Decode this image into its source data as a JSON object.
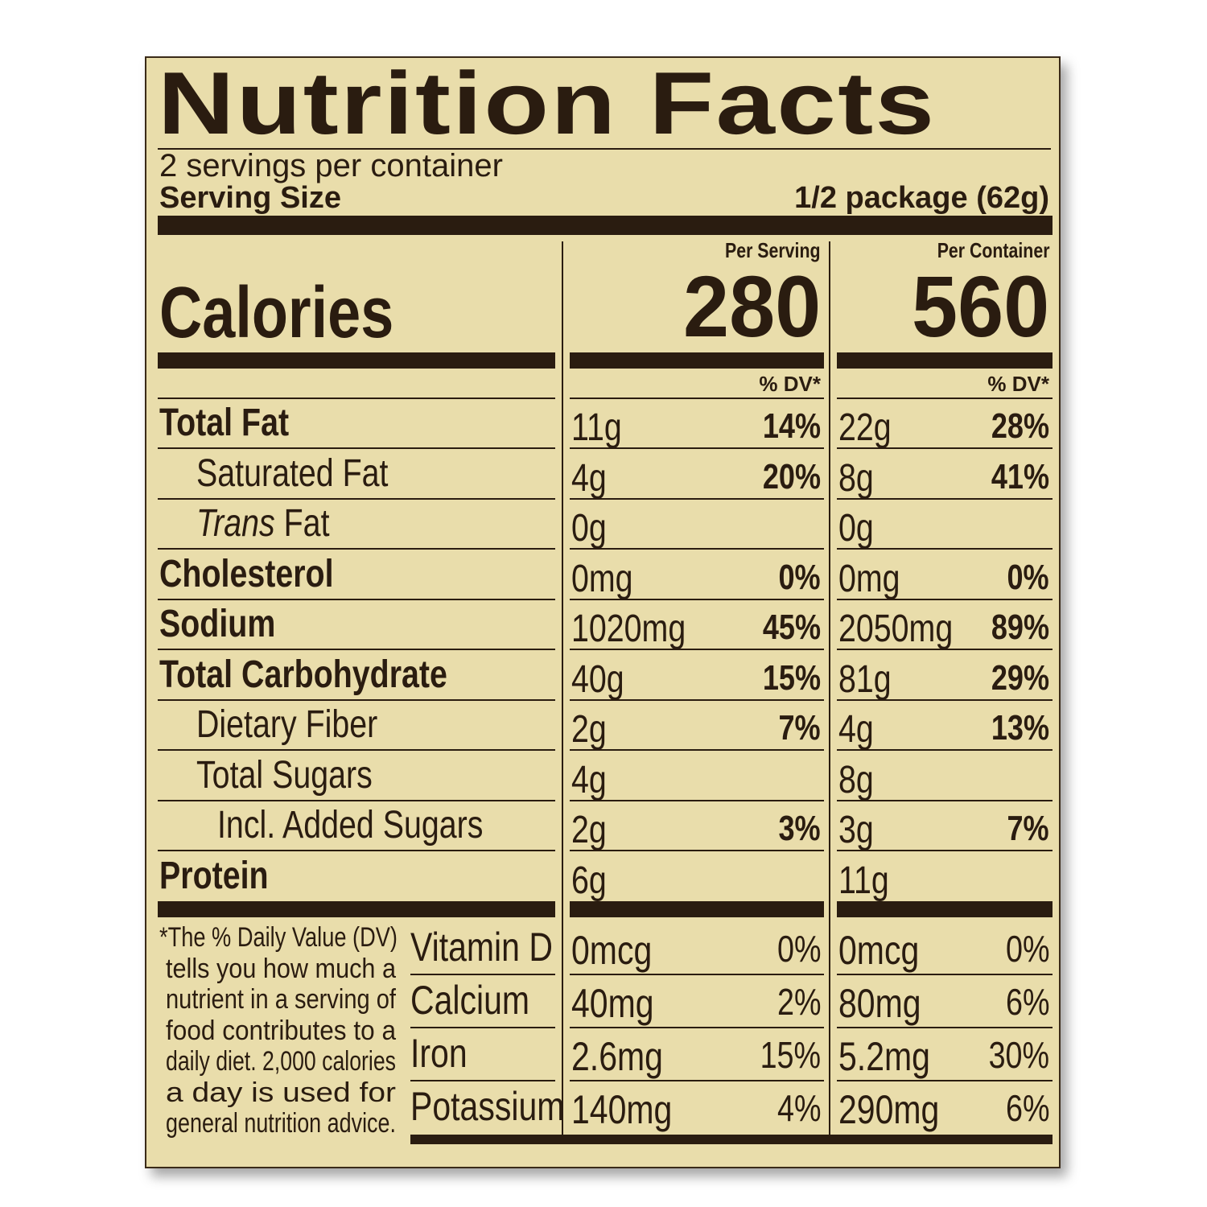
{
  "label": {
    "title": "Nutrition Facts",
    "servings_per_container": "2 servings per container",
    "serving_size_label": "Serving Size",
    "serving_size_value": "1/2 package (62g)",
    "per_serving_header": "Per Serving",
    "per_container_header": "Per Container",
    "calories_label": "Calories",
    "calories_per_serving": "280",
    "calories_per_container": "560",
    "dv_header": "% DV*",
    "nutrients": [
      {
        "name": "Total Fat",
        "bold": true,
        "indent": 0,
        "serving_amount": "11g",
        "serving_dv": "14%",
        "container_amount": "22g",
        "container_dv": "28%"
      },
      {
        "name": "Saturated Fat",
        "bold": false,
        "indent": 1,
        "serving_amount": "4g",
        "serving_dv": "20%",
        "container_amount": "8g",
        "container_dv": "41%"
      },
      {
        "name": "Trans Fat",
        "name_italic_part": "Trans",
        "name_rest": " Fat",
        "bold": false,
        "indent": 1,
        "serving_amount": "0g",
        "serving_dv": "",
        "container_amount": "0g",
        "container_dv": ""
      },
      {
        "name": "Cholesterol",
        "bold": true,
        "indent": 0,
        "serving_amount": "0mg",
        "serving_dv": "0%",
        "container_amount": "0mg",
        "container_dv": "0%"
      },
      {
        "name": "Sodium",
        "bold": true,
        "indent": 0,
        "serving_amount": "1020mg",
        "serving_dv": "45%",
        "container_amount": "2050mg",
        "container_dv": "89%"
      },
      {
        "name": "Total Carbohydrate",
        "bold": true,
        "indent": 0,
        "serving_amount": "40g",
        "serving_dv": "15%",
        "container_amount": "81g",
        "container_dv": "29%"
      },
      {
        "name": "Dietary Fiber",
        "bold": false,
        "indent": 1,
        "serving_amount": "2g",
        "serving_dv": "7%",
        "container_amount": "4g",
        "container_dv": "13%"
      },
      {
        "name": "Total Sugars",
        "bold": false,
        "indent": 1,
        "serving_amount": "4g",
        "serving_dv": "",
        "container_amount": "8g",
        "container_dv": ""
      },
      {
        "name": "Incl. Added Sugars",
        "bold": false,
        "indent": 2,
        "serving_amount": "2g",
        "serving_dv": "3%",
        "container_amount": "3g",
        "container_dv": "7%"
      },
      {
        "name": "Protein",
        "bold": true,
        "indent": 0,
        "serving_amount": "6g",
        "serving_dv": "",
        "container_amount": "11g",
        "container_dv": ""
      }
    ],
    "vitamins": [
      {
        "name": "Vitamin D",
        "serving_amount": "0mcg",
        "serving_dv": "0%",
        "container_amount": "0mcg",
        "container_dv": "0%"
      },
      {
        "name": "Calcium",
        "serving_amount": "40mg",
        "serving_dv": "2%",
        "container_amount": "80mg",
        "container_dv": "6%"
      },
      {
        "name": "Iron",
        "serving_amount": "2.6mg",
        "serving_dv": "15%",
        "container_amount": "5.2mg",
        "container_dv": "30%"
      },
      {
        "name": "Potassium",
        "serving_amount": "140mg",
        "serving_dv": "4%",
        "container_amount": "290mg",
        "container_dv": "6%"
      }
    ],
    "footnote_lines": [
      "*The % Daily Value (DV)",
      "tells you how much a",
      "nutrient in a serving of",
      "food contributes to a",
      "daily diet. 2,000 calories",
      "a day is used for",
      "general nutrition advice."
    ],
    "colors": {
      "background": "#e9ddab",
      "ink": "#2a1c10"
    }
  }
}
